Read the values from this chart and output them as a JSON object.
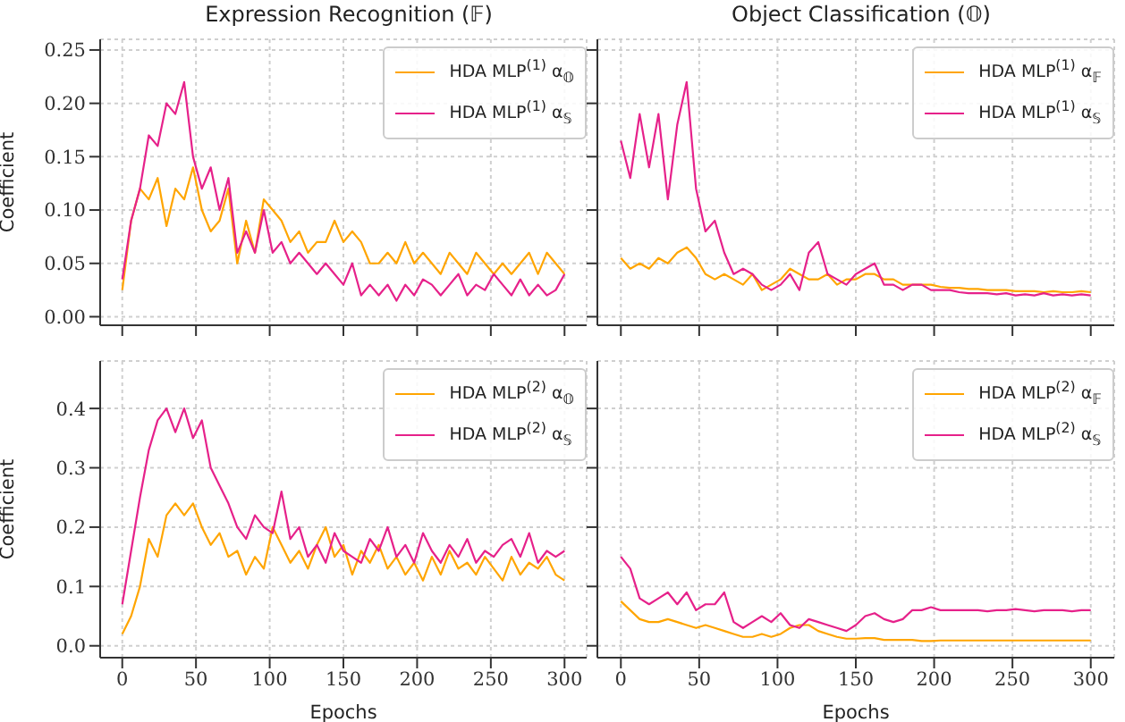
{
  "chart_data": [
    {
      "type": "line",
      "title": "Expression Recognition (𝔽)",
      "ylabel": "Coefficient",
      "xlim": [
        -15,
        315
      ],
      "xticks": [
        0,
        50,
        100,
        150,
        200,
        250,
        300
      ],
      "ylim": [
        -0.008,
        0.26
      ],
      "yticks": [
        {
          "value": 0,
          "label": "0.00"
        },
        0.05,
        {
          "value": 0.1,
          "label": "0.10"
        },
        0.15,
        {
          "value": 0.2,
          "label": "0.20"
        },
        0.25
      ],
      "grid": true,
      "legend": "top right",
      "tick_labels": "y",
      "x": [
        0,
        6,
        12,
        18,
        24,
        30,
        36,
        42,
        48,
        54,
        60,
        66,
        72,
        78,
        84,
        90,
        96,
        102,
        108,
        114,
        120,
        126,
        132,
        138,
        144,
        150,
        156,
        162,
        168,
        174,
        180,
        186,
        192,
        198,
        204,
        210,
        216,
        222,
        228,
        234,
        240,
        246,
        252,
        258,
        264,
        270,
        276,
        282,
        288,
        294,
        300
      ],
      "series": [
        {
          "name": "HDA MLP$^{(1)}$ α$_{𝕆}$",
          "color": "#ffa500",
          "values": [
            0.025,
            0.09,
            0.12,
            0.11,
            0.13,
            0.085,
            0.12,
            0.11,
            0.14,
            0.1,
            0.08,
            0.09,
            0.12,
            0.05,
            0.09,
            0.06,
            0.11,
            0.1,
            0.09,
            0.07,
            0.08,
            0.06,
            0.07,
            0.07,
            0.09,
            0.07,
            0.08,
            0.07,
            0.05,
            0.05,
            0.06,
            0.05,
            0.07,
            0.05,
            0.06,
            0.05,
            0.04,
            0.06,
            0.05,
            0.04,
            0.06,
            0.05,
            0.04,
            0.05,
            0.04,
            0.05,
            0.06,
            0.04,
            0.06,
            0.05,
            0.04
          ]
        },
        {
          "name": "HDA MLP$^{(1)}$ α$_{𝕊}$",
          "color": "#e6218a",
          "values": [
            0.035,
            0.09,
            0.12,
            0.17,
            0.16,
            0.2,
            0.19,
            0.22,
            0.15,
            0.12,
            0.14,
            0.1,
            0.13,
            0.06,
            0.08,
            0.06,
            0.1,
            0.06,
            0.07,
            0.05,
            0.06,
            0.05,
            0.04,
            0.05,
            0.04,
            0.03,
            0.05,
            0.02,
            0.03,
            0.02,
            0.03,
            0.015,
            0.03,
            0.02,
            0.035,
            0.03,
            0.02,
            0.03,
            0.04,
            0.02,
            0.03,
            0.025,
            0.04,
            0.03,
            0.02,
            0.035,
            0.02,
            0.03,
            0.02,
            0.025,
            0.04
          ]
        }
      ]
    },
    {
      "type": "line",
      "title": "Object Classification (𝕆)",
      "xlim": [
        -15,
        315
      ],
      "xticks": [
        0,
        50,
        100,
        150,
        200,
        250,
        300
      ],
      "ylim": [
        -0.008,
        0.26
      ],
      "yticks": [
        0,
        0.05,
        0.1,
        0.15,
        0.2,
        0.25
      ],
      "grid": true,
      "legend": "top right",
      "tick_labels": false,
      "x": [
        0,
        6,
        12,
        18,
        24,
        30,
        36,
        42,
        48,
        54,
        60,
        66,
        72,
        78,
        84,
        90,
        96,
        102,
        108,
        114,
        120,
        126,
        132,
        138,
        144,
        150,
        156,
        162,
        168,
        174,
        180,
        186,
        192,
        198,
        204,
        210,
        216,
        222,
        228,
        234,
        240,
        246,
        252,
        258,
        264,
        270,
        276,
        282,
        288,
        294,
        300
      ],
      "series": [
        {
          "name": "HDA MLP$^{(1)}$ α$_{𝔽}$",
          "color": "#ffa500",
          "values": [
            0.055,
            0.045,
            0.05,
            0.045,
            0.055,
            0.05,
            0.06,
            0.065,
            0.055,
            0.04,
            0.035,
            0.04,
            0.035,
            0.03,
            0.04,
            0.025,
            0.03,
            0.035,
            0.045,
            0.04,
            0.035,
            0.035,
            0.04,
            0.03,
            0.035,
            0.035,
            0.04,
            0.04,
            0.035,
            0.035,
            0.03,
            0.03,
            0.03,
            0.03,
            0.028,
            0.027,
            0.027,
            0.026,
            0.026,
            0.025,
            0.025,
            0.025,
            0.024,
            0.024,
            0.024,
            0.023,
            0.024,
            0.023,
            0.023,
            0.024,
            0.023
          ]
        },
        {
          "name": "HDA MLP$^{(1)}$ α$_{𝕊}$",
          "color": "#e6218a",
          "values": [
            0.165,
            0.13,
            0.19,
            0.14,
            0.19,
            0.11,
            0.18,
            0.22,
            0.12,
            0.08,
            0.09,
            0.06,
            0.04,
            0.045,
            0.04,
            0.03,
            0.025,
            0.03,
            0.04,
            0.025,
            0.06,
            0.07,
            0.04,
            0.035,
            0.03,
            0.04,
            0.045,
            0.05,
            0.03,
            0.03,
            0.025,
            0.03,
            0.03,
            0.025,
            0.025,
            0.025,
            0.023,
            0.022,
            0.022,
            0.022,
            0.021,
            0.022,
            0.02,
            0.021,
            0.02,
            0.022,
            0.02,
            0.021,
            0.02,
            0.021,
            0.02
          ]
        }
      ]
    },
    {
      "type": "line",
      "xlabel": "Epochs",
      "ylabel": "Coefficient",
      "xlim": [
        -15,
        315
      ],
      "xticks": [
        0,
        50,
        100,
        150,
        200,
        250,
        300
      ],
      "ylim": [
        -0.02,
        0.48
      ],
      "yticks": [
        {
          "value": 0,
          "label": "0.0"
        },
        0.1,
        0.2,
        0.3,
        0.4
      ],
      "grid": true,
      "legend": "top right",
      "x": [
        0,
        6,
        12,
        18,
        24,
        30,
        36,
        42,
        48,
        54,
        60,
        66,
        72,
        78,
        84,
        90,
        96,
        102,
        108,
        114,
        120,
        126,
        132,
        138,
        144,
        150,
        156,
        162,
        168,
        174,
        180,
        186,
        192,
        198,
        204,
        210,
        216,
        222,
        228,
        234,
        240,
        246,
        252,
        258,
        264,
        270,
        276,
        282,
        288,
        294,
        300
      ],
      "series": [
        {
          "name": "HDA MLP$^{(2)}$ α$_{𝕆}$",
          "color": "#ffa500",
          "values": [
            0.02,
            0.05,
            0.1,
            0.18,
            0.15,
            0.22,
            0.24,
            0.22,
            0.24,
            0.2,
            0.17,
            0.19,
            0.15,
            0.16,
            0.12,
            0.15,
            0.13,
            0.2,
            0.17,
            0.14,
            0.16,
            0.13,
            0.17,
            0.2,
            0.15,
            0.17,
            0.12,
            0.16,
            0.14,
            0.17,
            0.13,
            0.15,
            0.12,
            0.14,
            0.11,
            0.15,
            0.12,
            0.16,
            0.13,
            0.14,
            0.12,
            0.15,
            0.13,
            0.11,
            0.15,
            0.12,
            0.14,
            0.13,
            0.15,
            0.12,
            0.11
          ]
        },
        {
          "name": "HDA MLP$^{(2)}$ α$_{𝕊}$",
          "color": "#e6218a",
          "values": [
            0.07,
            0.16,
            0.25,
            0.33,
            0.38,
            0.4,
            0.36,
            0.4,
            0.35,
            0.38,
            0.3,
            0.27,
            0.24,
            0.2,
            0.18,
            0.22,
            0.2,
            0.19,
            0.26,
            0.18,
            0.2,
            0.15,
            0.17,
            0.14,
            0.19,
            0.16,
            0.15,
            0.14,
            0.18,
            0.16,
            0.2,
            0.15,
            0.17,
            0.14,
            0.19,
            0.16,
            0.14,
            0.17,
            0.15,
            0.18,
            0.14,
            0.16,
            0.15,
            0.17,
            0.18,
            0.15,
            0.19,
            0.14,
            0.16,
            0.15,
            0.16
          ]
        }
      ]
    },
    {
      "type": "line",
      "xlabel": "Epochs",
      "xlim": [
        -15,
        315
      ],
      "xticks": [
        0,
        50,
        100,
        150,
        200,
        250,
        300
      ],
      "ylim": [
        -0.02,
        0.48
      ],
      "yticks": [
        0,
        0.1,
        0.2,
        0.3,
        0.4
      ],
      "grid": true,
      "legend": "top right",
      "tick_labels": "x",
      "x": [
        0,
        6,
        12,
        18,
        24,
        30,
        36,
        42,
        48,
        54,
        60,
        66,
        72,
        78,
        84,
        90,
        96,
        102,
        108,
        114,
        120,
        126,
        132,
        138,
        144,
        150,
        156,
        162,
        168,
        174,
        180,
        186,
        192,
        198,
        204,
        210,
        216,
        222,
        228,
        234,
        240,
        246,
        252,
        258,
        264,
        270,
        276,
        282,
        288,
        294,
        300
      ],
      "series": [
        {
          "name": "HDA MLP$^{(2)}$ α$_{𝔽}$",
          "color": "#ffa500",
          "values": [
            0.075,
            0.06,
            0.045,
            0.04,
            0.04,
            0.045,
            0.04,
            0.035,
            0.03,
            0.035,
            0.03,
            0.025,
            0.02,
            0.015,
            0.015,
            0.02,
            0.015,
            0.02,
            0.03,
            0.035,
            0.035,
            0.025,
            0.02,
            0.015,
            0.012,
            0.012,
            0.013,
            0.013,
            0.01,
            0.01,
            0.01,
            0.01,
            0.008,
            0.008,
            0.009,
            0.009,
            0.009,
            0.009,
            0.009,
            0.009,
            0.009,
            0.009,
            0.009,
            0.009,
            0.009,
            0.009,
            0.009,
            0.009,
            0.009,
            0.009,
            0.009
          ]
        },
        {
          "name": "HDA MLP$^{(2)}$ α$_{𝕊}$",
          "color": "#e6218a",
          "values": [
            0.15,
            0.13,
            0.08,
            0.07,
            0.08,
            0.09,
            0.07,
            0.09,
            0.06,
            0.07,
            0.07,
            0.09,
            0.04,
            0.03,
            0.04,
            0.05,
            0.04,
            0.055,
            0.035,
            0.03,
            0.045,
            0.04,
            0.035,
            0.03,
            0.025,
            0.035,
            0.05,
            0.055,
            0.045,
            0.04,
            0.045,
            0.06,
            0.06,
            0.065,
            0.06,
            0.06,
            0.06,
            0.06,
            0.06,
            0.058,
            0.06,
            0.06,
            0.062,
            0.06,
            0.058,
            0.06,
            0.06,
            0.06,
            0.058,
            0.06,
            0.06
          ]
        }
      ]
    }
  ]
}
